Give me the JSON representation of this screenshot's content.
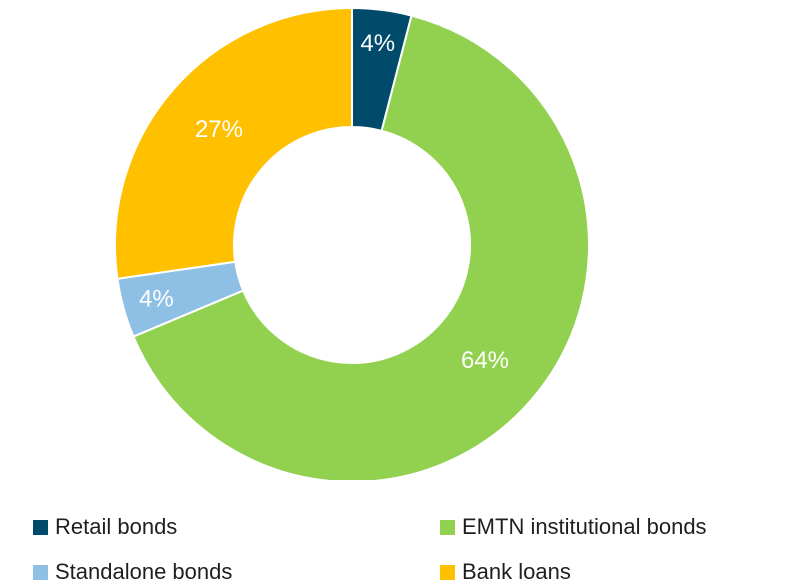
{
  "chart_data": {
    "type": "pie",
    "donut": true,
    "title": "",
    "start_angle_deg": 0,
    "direction": "clockwise",
    "slices": [
      {
        "label": "Retail bonds",
        "value": 4,
        "display": "4%",
        "color": "#004b6b"
      },
      {
        "label": "EMTN institutional bonds",
        "value": 64,
        "display": "64%",
        "color": "#92d050"
      },
      {
        "label": "Standalone bonds",
        "value": 4,
        "display": "4%",
        "color": "#8ebfe5"
      },
      {
        "label": "Bank loans",
        "value": 27,
        "display": "27%",
        "color": "#ffc000"
      }
    ],
    "legend": {
      "placement": "bottom",
      "order": [
        "Retail bonds",
        "EMTN institutional bonds",
        "Standalone bonds",
        "Bank loans"
      ]
    },
    "data_labels": {
      "color": "#ffffff",
      "format": "percent"
    }
  }
}
